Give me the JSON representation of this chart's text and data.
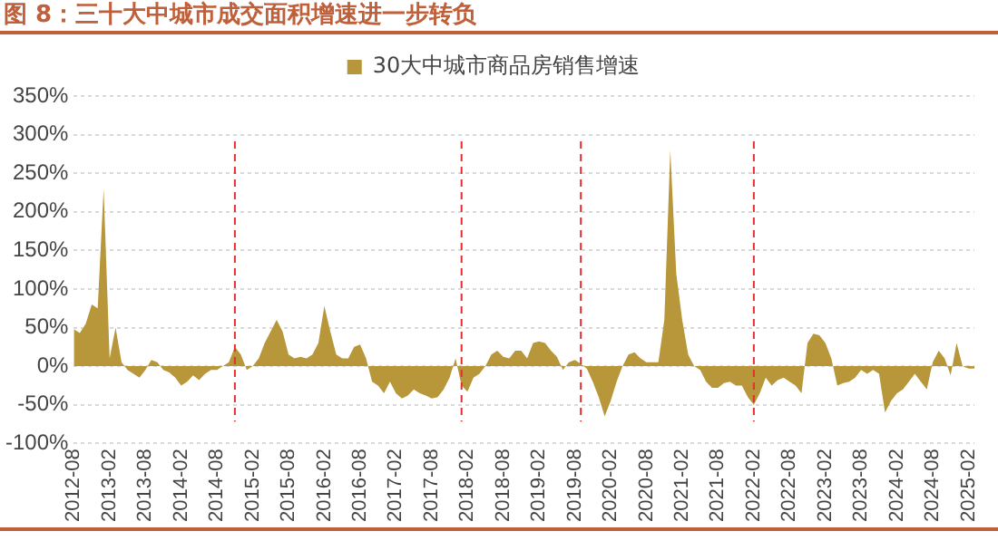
{
  "chart_data": {
    "type": "area",
    "title": "图 8：三十大中城市成交面积增速进一步转负",
    "x": [
      "2012-08",
      "2012-09",
      "2012-10",
      "2012-11",
      "2012-12",
      "2013-01",
      "2013-02",
      "2013-03",
      "2013-04",
      "2013-05",
      "2013-06",
      "2013-07",
      "2013-08",
      "2013-09",
      "2013-10",
      "2013-11",
      "2013-12",
      "2014-01",
      "2014-02",
      "2014-03",
      "2014-04",
      "2014-05",
      "2014-06",
      "2014-07",
      "2014-08",
      "2014-09",
      "2014-10",
      "2014-11",
      "2014-12",
      "2015-01",
      "2015-02",
      "2015-03",
      "2015-04",
      "2015-05",
      "2015-06",
      "2015-07",
      "2015-08",
      "2015-09",
      "2015-10",
      "2015-11",
      "2015-12",
      "2016-01",
      "2016-02",
      "2016-03",
      "2016-04",
      "2016-05",
      "2016-06",
      "2016-07",
      "2016-08",
      "2016-09",
      "2016-10",
      "2016-11",
      "2016-12",
      "2017-01",
      "2017-02",
      "2017-03",
      "2017-04",
      "2017-05",
      "2017-06",
      "2017-07",
      "2017-08",
      "2017-09",
      "2017-10",
      "2017-11",
      "2017-12",
      "2018-01",
      "2018-02",
      "2018-03",
      "2018-04",
      "2018-05",
      "2018-06",
      "2018-07",
      "2018-08",
      "2018-09",
      "2018-10",
      "2018-11",
      "2018-12",
      "2019-01",
      "2019-02",
      "2019-03",
      "2019-04",
      "2019-05",
      "2019-06",
      "2019-07",
      "2019-08",
      "2019-09",
      "2019-10",
      "2019-11",
      "2019-12",
      "2020-01",
      "2020-02",
      "2020-03",
      "2020-04",
      "2020-05",
      "2020-06",
      "2020-07",
      "2020-08",
      "2020-09",
      "2020-10",
      "2020-11",
      "2020-12",
      "2021-01",
      "2021-02",
      "2021-03",
      "2021-04",
      "2021-05",
      "2021-06",
      "2021-07",
      "2021-08",
      "2021-09",
      "2021-10",
      "2021-11",
      "2021-12",
      "2022-01",
      "2022-02",
      "2022-03",
      "2022-04",
      "2022-05",
      "2022-06",
      "2022-07",
      "2022-08",
      "2022-09",
      "2022-10",
      "2022-11",
      "2022-12",
      "2023-01",
      "2023-02",
      "2023-03",
      "2023-04",
      "2023-05",
      "2023-06",
      "2023-07",
      "2023-08",
      "2023-09",
      "2023-10",
      "2023-11",
      "2023-12",
      "2024-01",
      "2024-02",
      "2024-03",
      "2024-04",
      "2024-05",
      "2024-06",
      "2024-07",
      "2024-08",
      "2024-09",
      "2024-10",
      "2024-11",
      "2024-12",
      "2025-01",
      "2025-02",
      "2025-03"
    ],
    "series": [
      {
        "name": "30大中城市商品房销售增速",
        "color": "#b8963a",
        "values": [
          48,
          43,
          55,
          80,
          75,
          230,
          10,
          50,
          5,
          -5,
          -10,
          -15,
          -5,
          8,
          5,
          -5,
          -8,
          -15,
          -25,
          -20,
          -12,
          -18,
          -10,
          -5,
          -5,
          0,
          5,
          25,
          15,
          -5,
          0,
          10,
          30,
          45,
          60,
          45,
          15,
          10,
          12,
          10,
          15,
          30,
          78,
          45,
          15,
          10,
          10,
          25,
          28,
          10,
          -20,
          -25,
          -35,
          -20,
          -35,
          -42,
          -38,
          -30,
          -35,
          -38,
          -42,
          -40,
          -30,
          -15,
          10,
          -25,
          -33,
          -15,
          -10,
          0,
          15,
          20,
          12,
          10,
          20,
          20,
          10,
          30,
          32,
          30,
          20,
          12,
          -5,
          5,
          8,
          3,
          -3,
          -20,
          -40,
          -65,
          -45,
          -20,
          0,
          15,
          18,
          10,
          5,
          5,
          5,
          60,
          280,
          120,
          60,
          15,
          0,
          -5,
          -20,
          -28,
          -28,
          -22,
          -20,
          -25,
          -25,
          -40,
          -50,
          -35,
          -15,
          -25,
          -18,
          -15,
          -20,
          -25,
          -35,
          30,
          42,
          40,
          30,
          10,
          -25,
          -22,
          -20,
          -15,
          -5,
          -10,
          -5,
          -10,
          -60,
          -45,
          -35,
          -30,
          -20,
          -10,
          -20,
          -30,
          5,
          20,
          10,
          -12,
          30,
          0,
          -3,
          -3
        ]
      }
    ],
    "xlim": [
      "2012-08",
      "2025-03"
    ],
    "xticks": [
      "2012-08",
      "2013-02",
      "2013-08",
      "2014-02",
      "2014-08",
      "2015-02",
      "2015-08",
      "2016-02",
      "2016-08",
      "2017-02",
      "2017-08",
      "2018-02",
      "2018-08",
      "2019-02",
      "2019-08",
      "2020-02",
      "2020-08",
      "2021-02",
      "2021-08",
      "2022-02",
      "2022-08",
      "2023-02",
      "2023-08",
      "2024-02",
      "2024-08",
      "2025-02"
    ],
    "ylim": [
      -100,
      350
    ],
    "yticks": [
      {
        "value": -100,
        "label": "-100%"
      },
      {
        "value": -50,
        "label": "-50%"
      },
      {
        "value": 0,
        "label": "0%"
      },
      {
        "value": 50,
        "label": "50%"
      },
      {
        "value": 100,
        "label": "100%"
      },
      {
        "value": 150,
        "label": "150%"
      },
      {
        "value": 200,
        "label": "200%"
      },
      {
        "value": 250,
        "label": "250%"
      },
      {
        "value": 300,
        "label": "300%"
      },
      {
        "value": 350,
        "label": "350%"
      }
    ],
    "ref_lines": [
      {
        "axis": "x",
        "value": "2014-11",
        "color": "#e03030",
        "line_style": "dashed"
      },
      {
        "axis": "x",
        "value": "2018-01",
        "color": "#e03030",
        "line_style": "dashed"
      },
      {
        "axis": "x",
        "value": "2019-09",
        "color": "#e03030",
        "line_style": "dashed"
      },
      {
        "axis": "x",
        "value": "2022-02",
        "color": "#e03030",
        "line_style": "dashed"
      }
    ],
    "grid": "y",
    "legend": "top",
    "marker": "none"
  }
}
